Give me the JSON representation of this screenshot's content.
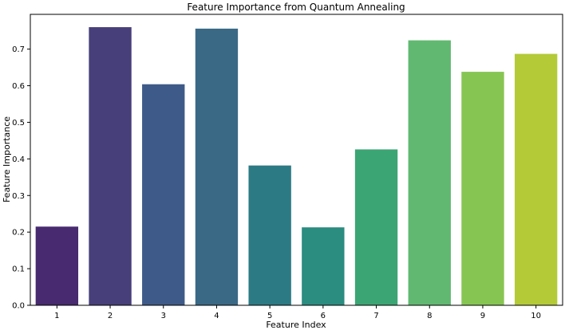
{
  "chart_data": {
    "type": "bar",
    "title": "Feature Importance from Quantum Annealing",
    "xlabel": "Feature Index",
    "ylabel": "Feature Importance",
    "categories": [
      "1",
      "2",
      "3",
      "4",
      "5",
      "6",
      "7",
      "8",
      "9",
      "10"
    ],
    "values": [
      0.215,
      0.76,
      0.604,
      0.756,
      0.382,
      0.213,
      0.426,
      0.724,
      0.638,
      0.687
    ],
    "colors": [
      "#472a6f",
      "#473f7a",
      "#3e5a88",
      "#3a6986",
      "#2c7a84",
      "#2b8c80",
      "#3ba574",
      "#61b871",
      "#86c552",
      "#b4ca37"
    ],
    "ylim": [
      0,
      0.795
    ],
    "yticks": [
      "0.0",
      "0.1",
      "0.2",
      "0.3",
      "0.4",
      "0.5",
      "0.6",
      "0.7"
    ],
    "grid": false,
    "legend": "none"
  }
}
